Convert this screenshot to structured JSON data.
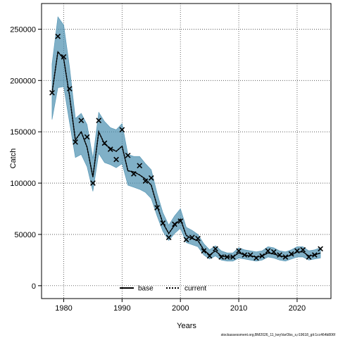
{
  "chart_data": {
    "type": "line",
    "xlabel": "Years",
    "ylabel": "Catch",
    "xlim": [
      1976.2,
      2025.8
    ],
    "ylim": [
      -12500,
      275000
    ],
    "x_ticks": [
      1980,
      1990,
      2000,
      2010,
      2020
    ],
    "y_ticks": [
      0,
      50000,
      100000,
      150000,
      200000,
      250000
    ],
    "grid": true,
    "grid_style": "dotted",
    "legend_position": "bottom-center",
    "footer": "stockassessment.org,BM2026_11_keyVarObs_s,r19618_git:1cc464b806f",
    "colors": {
      "band": "#4a8fb0",
      "line": "#000000",
      "marker": "#000000"
    },
    "observed": {
      "marker": "x",
      "x": [
        1978,
        1979,
        1980,
        1981,
        1982,
        1983,
        1984,
        1985,
        1986,
        1987,
        1988,
        1989,
        1990,
        1991,
        1992,
        1993,
        1994,
        1995,
        1996,
        1997,
        1998,
        1999,
        2000,
        2001,
        2002,
        2003,
        2004,
        2005,
        2006,
        2007,
        2008,
        2009,
        2010,
        2011,
        2012,
        2013,
        2014,
        2015,
        2016,
        2017,
        2018,
        2019,
        2020,
        2021,
        2022,
        2023,
        2024
      ],
      "y": [
        188000,
        243000,
        223000,
        192000,
        140000,
        161000,
        145000,
        100000,
        161000,
        139000,
        133000,
        123000,
        152000,
        127000,
        109000,
        117000,
        102000,
        105000,
        76000,
        61000,
        47000,
        60000,
        63000,
        45000,
        47000,
        46000,
        34000,
        29000,
        36000,
        28000,
        28000,
        28000,
        34000,
        30000,
        30000,
        27000,
        29000,
        34000,
        33000,
        30000,
        28000,
        31000,
        34000,
        35000,
        28000,
        30000,
        36000
      ]
    },
    "series": [
      {
        "name": "base",
        "style": "solid",
        "x": [
          1978,
          1979,
          1980,
          1981,
          1982,
          1983,
          1984,
          1985,
          1986,
          1987,
          1988,
          1989,
          1990,
          1991,
          1992,
          1993,
          1994,
          1995,
          1996,
          1997,
          1998,
          1999,
          2000,
          2001,
          2002,
          2003,
          2004,
          2005,
          2006,
          2007,
          2008,
          2009,
          2010,
          2011,
          2012,
          2013,
          2014,
          2015,
          2016,
          2017,
          2018,
          2019,
          2020,
          2021,
          2022,
          2023,
          2024
        ],
        "values": [
          188000,
          228000,
          221000,
          185000,
          142000,
          150000,
          135000,
          106000,
          150000,
          138000,
          134000,
          131000,
          136000,
          112000,
          111000,
          108000,
          104000,
          98000,
          78000,
          61000,
          51000,
          59000,
          65000,
          49000,
          46000,
          44000,
          35000,
          30000,
          34000,
          29000,
          28000,
          28000,
          32000,
          30000,
          29000,
          28000,
          29000,
          32000,
          31000,
          29000,
          28000,
          30000,
          33000,
          33000,
          29000,
          30000,
          32000
        ],
        "lower": [
          162000,
          193000,
          194000,
          159000,
          125000,
          128000,
          116000,
          92000,
          129000,
          120000,
          118000,
          115000,
          119000,
          98000,
          96000,
          94000,
          91000,
          85000,
          68000,
          53000,
          44000,
          51000,
          56000,
          42000,
          40000,
          38000,
          30000,
          26000,
          29000,
          25000,
          24000,
          24000,
          27000,
          26000,
          25000,
          24000,
          25000,
          28000,
          27000,
          25000,
          24000,
          26000,
          28000,
          28000,
          25000,
          26000,
          27000
        ],
        "upper": [
          216000,
          262000,
          254000,
          213000,
          163000,
          168000,
          157000,
          124000,
          169000,
          160000,
          154000,
          152000,
          158000,
          128000,
          126000,
          126000,
          119000,
          113000,
          90000,
          71000,
          59000,
          68000,
          75000,
          57000,
          54000,
          50000,
          41000,
          35000,
          39000,
          34000,
          32000,
          32000,
          37000,
          35000,
          34000,
          33000,
          34000,
          38000,
          37000,
          34000,
          33000,
          35000,
          38000,
          38000,
          34000,
          35000,
          37000
        ]
      },
      {
        "name": "current",
        "style": "dotted",
        "x": [
          1978,
          1979,
          1980,
          1981,
          1982,
          1983,
          1984,
          1985,
          1986,
          1987,
          1988,
          1989,
          1990,
          1991,
          1992,
          1993,
          1994,
          1995,
          1996,
          1997,
          1998,
          1999,
          2000,
          2001,
          2002,
          2003,
          2004,
          2005,
          2006,
          2007,
          2008,
          2009,
          2010,
          2011,
          2012,
          2013,
          2014,
          2015,
          2016,
          2017,
          2018,
          2019,
          2020,
          2021,
          2022,
          2023,
          2024
        ],
        "values": [
          188000,
          228000,
          221000,
          185000,
          142000,
          150000,
          135000,
          106000,
          150000,
          138000,
          134000,
          131000,
          136000,
          112000,
          111000,
          108000,
          104000,
          98000,
          78000,
          61000,
          51000,
          59000,
          65000,
          49000,
          46000,
          44000,
          35000,
          30000,
          34000,
          29000,
          28000,
          28000,
          32000,
          30000,
          29000,
          28000,
          29000,
          32000,
          31000,
          29000,
          28000,
          30000,
          33000,
          33000,
          29000,
          30000,
          32000
        ],
        "lower": [
          162000,
          193000,
          194000,
          159000,
          125000,
          128000,
          116000,
          92000,
          129000,
          120000,
          118000,
          115000,
          119000,
          98000,
          96000,
          94000,
          91000,
          85000,
          68000,
          53000,
          44000,
          51000,
          56000,
          42000,
          40000,
          38000,
          30000,
          26000,
          29000,
          25000,
          24000,
          24000,
          27000,
          26000,
          25000,
          24000,
          25000,
          28000,
          27000,
          25000,
          24000,
          26000,
          28000,
          28000,
          25000,
          26000,
          27000
        ],
        "upper": [
          216000,
          262000,
          254000,
          213000,
          163000,
          168000,
          157000,
          124000,
          169000,
          160000,
          154000,
          152000,
          158000,
          128000,
          126000,
          126000,
          119000,
          113000,
          90000,
          71000,
          59000,
          68000,
          75000,
          57000,
          54000,
          50000,
          41000,
          35000,
          39000,
          34000,
          32000,
          32000,
          37000,
          35000,
          34000,
          33000,
          34000,
          38000,
          37000,
          34000,
          33000,
          35000,
          38000,
          38000,
          34000,
          35000,
          37000
        ]
      }
    ]
  }
}
